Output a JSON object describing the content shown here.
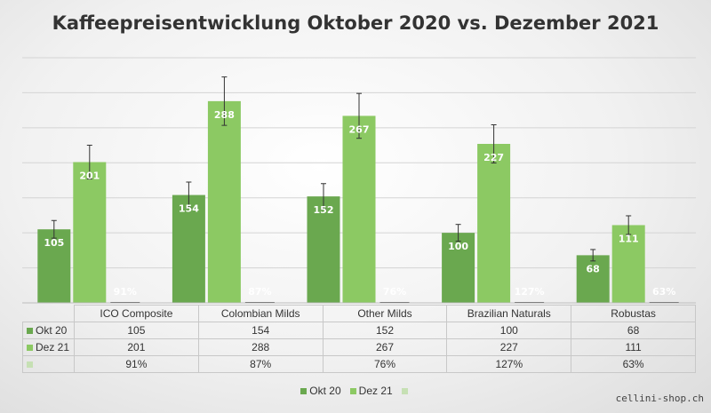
{
  "chart_data": {
    "type": "bar",
    "title": "Kaffeepreisentwicklung Oktober 2020 vs. Dezember 2021",
    "categories": [
      "ICO Composite",
      "Colombian Milds",
      "Other Milds",
      "Brazilian Naturals",
      "Robustas"
    ],
    "series": [
      {
        "name": "Okt 20",
        "values": [
          105,
          154,
          152,
          100,
          68
        ],
        "color": "#6aa84f",
        "error_bars": true
      },
      {
        "name": "Dez 21",
        "values": [
          201,
          288,
          267,
          227,
          111
        ],
        "color": "#8cc963",
        "error_bars": true
      },
      {
        "name": "",
        "values": [
          91,
          87,
          76,
          127,
          63
        ],
        "labels": [
          "91%",
          "87%",
          "76%",
          "127%",
          "63%"
        ],
        "color": "#c6e0b4"
      }
    ],
    "ylim": [
      0,
      350
    ],
    "grid": true,
    "legend_position": "bottom",
    "data_table": true
  },
  "watermark": "cellini-shop.ch"
}
